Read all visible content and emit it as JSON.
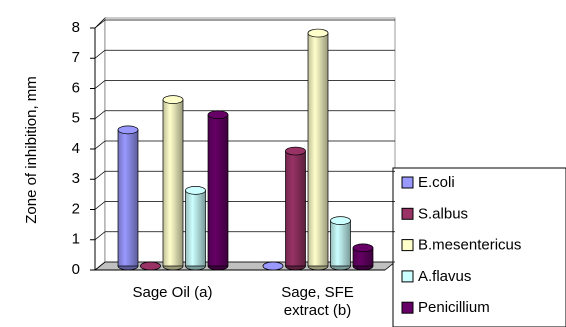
{
  "chart_data": {
    "type": "bar",
    "y_label": "Zone of inhibition, mm",
    "categories": [
      "Sage Oil (a)",
      "Sage, SFE extract (b)"
    ],
    "series": [
      {
        "name": "E.coli",
        "color": "#9999ff",
        "values": [
          4.5,
          0
        ]
      },
      {
        "name": "S.albus",
        "color": "#993366",
        "values": [
          0,
          3.8
        ]
      },
      {
        "name": "B.mesentericus",
        "color": "#ffffcc",
        "values": [
          5.5,
          7.7
        ]
      },
      {
        "name": "A.flavus",
        "color": "#ccffff",
        "values": [
          2.5,
          1.5
        ]
      },
      {
        "name": "Penicillium",
        "color": "#660066",
        "values": [
          5.0,
          0.6
        ]
      }
    ],
    "ylim": [
      0,
      8
    ],
    "yticks": [
      0,
      1,
      2,
      3,
      4,
      5,
      6,
      7,
      8
    ],
    "grid": true
  }
}
